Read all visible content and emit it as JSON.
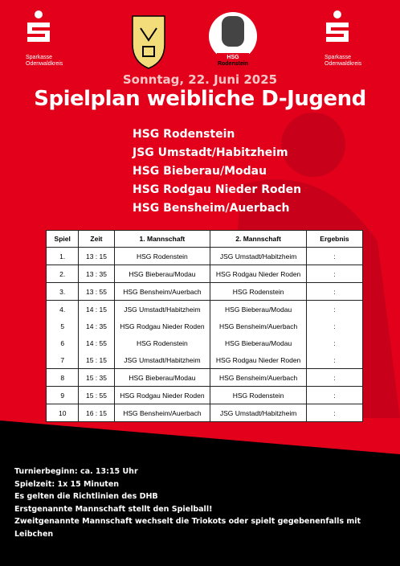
{
  "header": {
    "sponsor_left": {
      "name": "Sparkasse",
      "region": "Odenwaldkreis"
    },
    "club": {
      "name": "HSG",
      "place": "Rodenstein"
    },
    "sponsor_right": {
      "name": "Sparkasse",
      "region": "Odenwaldkreis"
    }
  },
  "date": "Sonntag, 22. Juni 2025",
  "title": "Spielplan weibliche D-Jugend",
  "teams": [
    "HSG Rodenstein",
    "JSG Umstadt/Habitzheim",
    "HSG Bieberau/Modau",
    "HSG Rodgau Nieder Roden",
    "HSG Bensheim/Auerbach"
  ],
  "table": {
    "columns": [
      "Spiel",
      "Zeit",
      "1. Mannschaft",
      "2. Mannschaft",
      "Ergebnis"
    ],
    "rows": [
      [
        "1.",
        "13 : 15",
        "HSG Rodenstein",
        "JSG Umstadt/Habitzheim",
        ":"
      ],
      [
        "2.",
        "13 : 35",
        "HSG Bieberau/Modau",
        "HSG Rodgau Nieder Roden",
        ":"
      ],
      [
        "3.",
        "13 : 55",
        "HSG Bensheim/Auerbach",
        "HSG Rodenstein",
        ":"
      ],
      [
        "4.",
        "14 : 15",
        "JSG Umstadt/Habitzheim",
        "HSG Bieberau/Modau",
        ":"
      ],
      [
        "5",
        "14 : 35",
        "HSG Rodgau Nieder Roden",
        "HSG Bensheim/Auerbach",
        ":"
      ],
      [
        "6",
        "14 : 55",
        "HSG Rodenstein",
        "HSG Bieberau/Modau",
        ":"
      ],
      [
        "7",
        "15 : 15",
        "JSG Umstadt/Habitzheim",
        "HSG Rodgau Nieder Roden",
        ":"
      ],
      [
        "8",
        "15 : 35",
        "HSG Bieberau/Modau",
        "HSG Bensheim/Auerbach",
        ":"
      ],
      [
        "9",
        "15 : 55",
        "HSG Rodgau Nieder Roden",
        "HSG Rodenstein",
        ":"
      ],
      [
        "10",
        "16 : 15",
        "HSG Bensheim/Auerbach",
        "JSG Umstadt/Habitzheim",
        ":"
      ]
    ]
  },
  "notes": [
    "Turnierbeginn: ca. 13:15 Uhr",
    "Spielzeit: 1x 15 Minuten",
    "Es gelten die Richtlinien des DHB",
    "Erstgenannte Mannschaft stellt den Spielball!",
    "Zweitgenannte Mannschaft wechselt die Triokots oder spielt gegebenenfalls mit Leibchen"
  ]
}
